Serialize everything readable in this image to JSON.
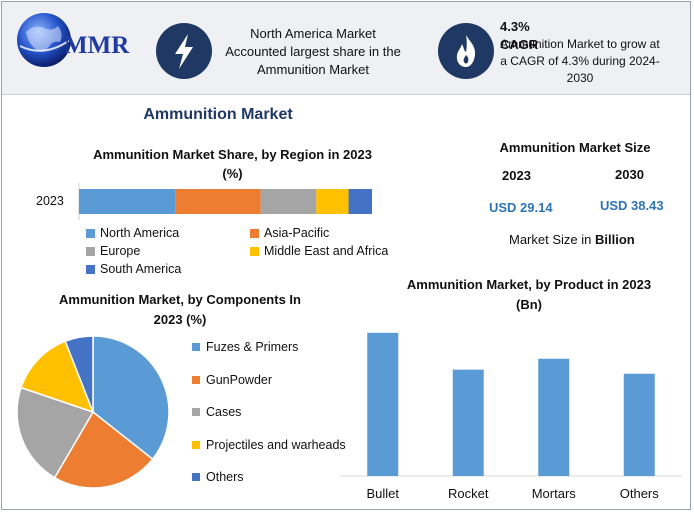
{
  "header": {
    "logo_text": "MMR",
    "box1_text": "North America Market Accounted largest share in the Ammunition Market",
    "box2_title": "4.3% CAGR",
    "box2_text": "Ammunition Market to grow at a CAGR of 4.3% during 2024-2030"
  },
  "main_title": "Ammunition Market",
  "market_size": {
    "title": "Ammunition Market Size",
    "year1": "2023",
    "year2": "2030",
    "value1": "USD 29.14",
    "value2": "USD 38.43",
    "note_prefix": "Market Size in ",
    "note_bold": "Billion"
  },
  "colors": {
    "blue": "#5b9bd5",
    "orange": "#ed7d31",
    "gray": "#a5a5a5",
    "yellow": "#ffc000",
    "darkblue": "#4472c4"
  },
  "chart_data": [
    {
      "type": "bar",
      "orientation": "horizontal-stacked",
      "title": "Ammunition Market Share, by Region in 2023",
      "subtitle": "(%)",
      "categories": [
        "2023"
      ],
      "series": [
        {
          "name": "North America",
          "values": [
            33
          ]
        },
        {
          "name": "Asia-Pacific",
          "values": [
            29
          ]
        },
        {
          "name": "Europe",
          "values": [
            19
          ]
        },
        {
          "name": "Middle East and Africa",
          "values": [
            11
          ]
        },
        {
          "name": "South America",
          "values": [
            8
          ]
        }
      ],
      "legend": "bottom"
    },
    {
      "type": "pie",
      "title": "Ammunition Market, by Components In",
      "subtitle": "2023 (%)",
      "labels": [
        "Fuzes & Primers",
        "GunPowder",
        "Cases",
        "Projectiles and warheads",
        "Others"
      ],
      "values": [
        36,
        23,
        22,
        14,
        6
      ],
      "legend": "right"
    },
    {
      "type": "bar",
      "title": "Ammunition Market, by Product in 2023",
      "subtitle": "(Bn)",
      "categories": [
        "Bullet",
        "Rocket",
        "Mortars",
        "Others"
      ],
      "values": [
        10.5,
        7.8,
        8.6,
        7.5
      ],
      "ylim": [
        0,
        11
      ],
      "grid": false
    }
  ]
}
